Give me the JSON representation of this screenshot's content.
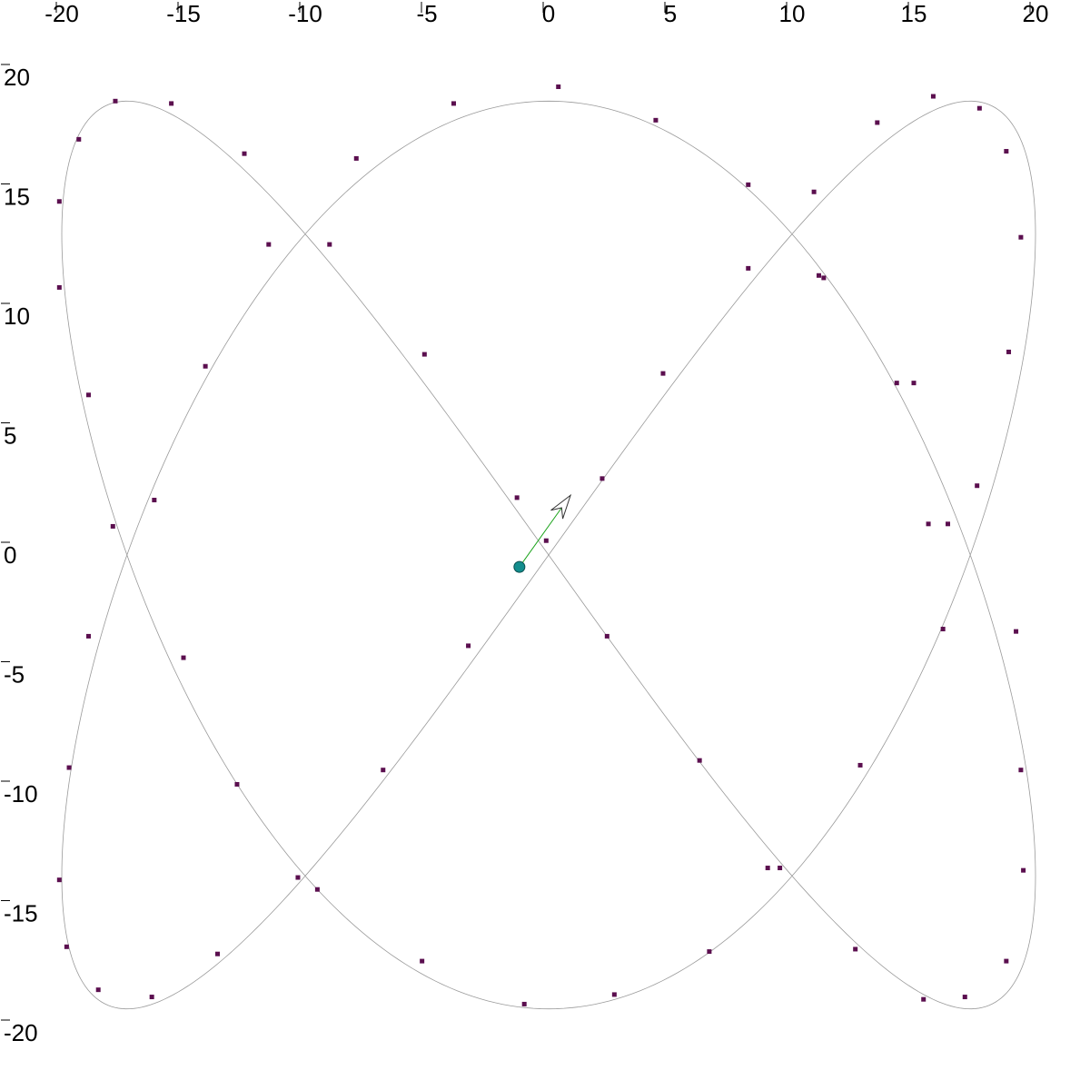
{
  "chart_data": {
    "type": "scatter",
    "title": "",
    "xlabel": "",
    "ylabel": "",
    "xlim": [
      -22.5,
      22.5
    ],
    "ylim": [
      -21.5,
      23
    ],
    "grid": false,
    "x_ticks": [
      -20,
      -15,
      -10,
      -5,
      0,
      5,
      10,
      15,
      20
    ],
    "y_ticks": [
      20,
      15,
      10,
      5,
      0,
      -5,
      -10,
      -15,
      -20
    ],
    "x_tick_labels": [
      "-20",
      "-15",
      "-10",
      "-5",
      "0",
      "5",
      "10",
      "15",
      "20"
    ],
    "y_tick_labels": [
      "20",
      "15",
      "10",
      "5",
      "0",
      "-5",
      "-10",
      "-15",
      "-20"
    ],
    "curve": {
      "kind": "lissajous",
      "equation_x": "x = 20 sin(2t)",
      "equation_y": "y = 19 cos(3t)",
      "color": "#9a9a9a"
    },
    "points": {
      "color": "#5b0f4f",
      "values": [
        {
          "x": 0.4,
          "y": 19.6
        },
        {
          "x": 4.4,
          "y": 18.2
        },
        {
          "x": 8.2,
          "y": 15.5
        },
        {
          "x": 11.1,
          "y": 11.7
        },
        {
          "x": 14.3,
          "y": 7.2
        },
        {
          "x": 17.6,
          "y": 2.9
        },
        {
          "x": 19.2,
          "y": -3.2
        },
        {
          "x": 19.4,
          "y": -9.0
        },
        {
          "x": 19.5,
          "y": -13.2
        },
        {
          "x": 18.8,
          "y": -17.0
        },
        {
          "x": 17.1,
          "y": -18.5
        },
        {
          "x": 15.4,
          "y": -18.6
        },
        {
          "x": 12.6,
          "y": -16.5
        },
        {
          "x": 9.5,
          "y": -13.1
        },
        {
          "x": 6.2,
          "y": -8.6
        },
        {
          "x": 2.4,
          "y": -3.4
        },
        {
          "x": -1.3,
          "y": 2.4
        },
        {
          "x": -5.1,
          "y": 8.4
        },
        {
          "x": -9.0,
          "y": 13.0
        },
        {
          "x": -7.9,
          "y": 16.6
        },
        {
          "x": -3.9,
          "y": 18.9
        },
        {
          "x": 4.7,
          "y": 7.6
        },
        {
          "x": 2.2,
          "y": 3.2
        },
        {
          "x": -0.1,
          "y": 0.6
        },
        {
          "x": -3.3,
          "y": -3.8
        },
        {
          "x": -6.8,
          "y": -9.0
        },
        {
          "x": -10.3,
          "y": -13.5
        },
        {
          "x": -5.2,
          "y": -17.0
        },
        {
          "x": -1.0,
          "y": -18.8
        },
        {
          "x": 2.7,
          "y": -18.4
        },
        {
          "x": 6.6,
          "y": -16.6
        },
        {
          "x": 9.0,
          "y": -13.1
        },
        {
          "x": 12.8,
          "y": -8.8
        },
        {
          "x": 16.2,
          "y": -3.1
        },
        {
          "x": 16.4,
          "y": 1.3
        },
        {
          "x": 15.0,
          "y": 7.2
        },
        {
          "x": 11.3,
          "y": 11.6
        },
        {
          "x": 8.2,
          "y": 12.0
        },
        {
          "x": 10.9,
          "y": 15.2
        },
        {
          "x": 13.5,
          "y": 18.1
        },
        {
          "x": 15.8,
          "y": 19.2
        },
        {
          "x": 17.7,
          "y": 18.7
        },
        {
          "x": 18.8,
          "y": 16.9
        },
        {
          "x": 19.4,
          "y": 13.3
        },
        {
          "x": 18.9,
          "y": 8.5
        },
        {
          "x": 15.6,
          "y": 1.3
        },
        {
          "x": -11.5,
          "y": 13.0
        },
        {
          "x": -14.1,
          "y": 7.9
        },
        {
          "x": -16.2,
          "y": 2.3
        },
        {
          "x": -17.9,
          "y": 1.2
        },
        {
          "x": -18.9,
          "y": -3.4
        },
        {
          "x": -15.0,
          "y": -4.3
        },
        {
          "x": -12.8,
          "y": -9.6
        },
        {
          "x": -18.9,
          "y": 6.7
        },
        {
          "x": -20.1,
          "y": 11.2
        },
        {
          "x": -20.1,
          "y": 14.8
        },
        {
          "x": -19.3,
          "y": 17.4
        },
        {
          "x": -17.8,
          "y": 19.0
        },
        {
          "x": -15.5,
          "y": 18.9
        },
        {
          "x": -12.5,
          "y": 16.8
        },
        {
          "x": -19.7,
          "y": -8.9
        },
        {
          "x": -20.1,
          "y": -13.6
        },
        {
          "x": -19.8,
          "y": -16.4
        },
        {
          "x": -18.5,
          "y": -18.2
        },
        {
          "x": -16.3,
          "y": -18.5
        },
        {
          "x": -13.6,
          "y": -16.7
        },
        {
          "x": -9.5,
          "y": -14.0
        }
      ]
    },
    "marker": {
      "x": -1.2,
      "y": -0.5,
      "color": "#138d8d"
    },
    "vector": {
      "from": {
        "x": -1.2,
        "y": -0.5
      },
      "to": {
        "x": 0.9,
        "y": 2.5
      },
      "color": "#1aa31a"
    }
  }
}
